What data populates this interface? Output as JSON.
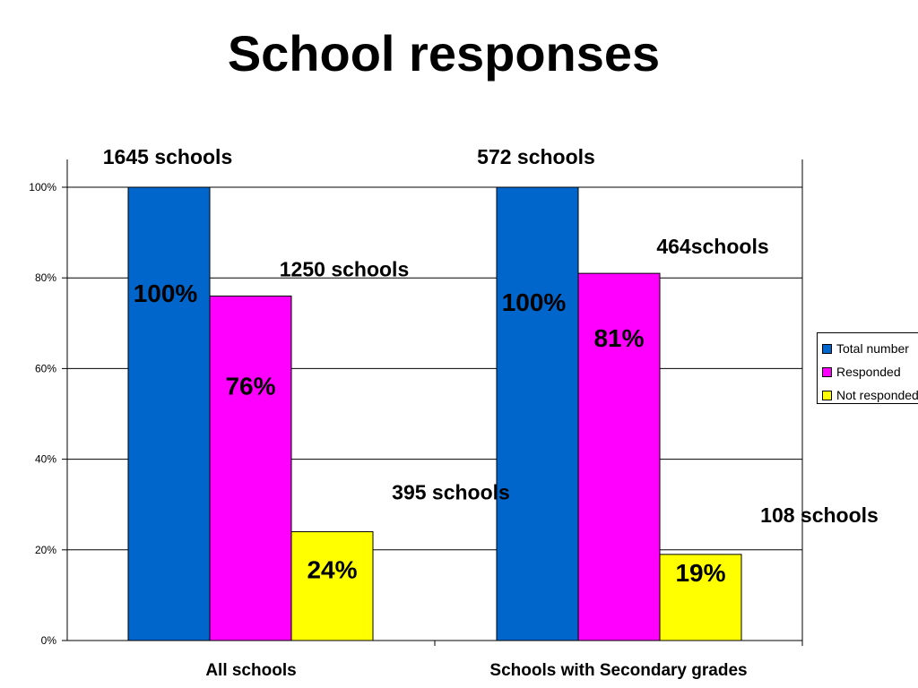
{
  "page": {
    "title": "School responses"
  },
  "chart_data": {
    "type": "bar",
    "categories": [
      "All schools",
      "Schools with Secondary grades"
    ],
    "series": [
      {
        "name": "Total number",
        "color": "#0066CC",
        "values": [
          100,
          100
        ]
      },
      {
        "name": "Responded",
        "color": "#FF00FF",
        "values": [
          76,
          81
        ]
      },
      {
        "name": "Not responded",
        "color": "#FFFF00",
        "values": [
          24,
          19
        ]
      }
    ],
    "bar_labels": [
      [
        "100%",
        "100%"
      ],
      [
        "76%",
        "81%"
      ],
      [
        "24%",
        "19%"
      ]
    ],
    "count_labels": [
      [
        "1645 schools",
        "572 schools"
      ],
      [
        "1250 schools",
        "464schools"
      ],
      [
        "395 schools",
        "108 schools"
      ]
    ],
    "y_ticks": [
      "0%",
      "20%",
      "40%",
      "60%",
      "80%",
      "100%"
    ],
    "ylim": [
      0,
      100
    ],
    "grid": true,
    "legend_position": "right",
    "title": "",
    "xlabel": "",
    "ylabel": ""
  }
}
